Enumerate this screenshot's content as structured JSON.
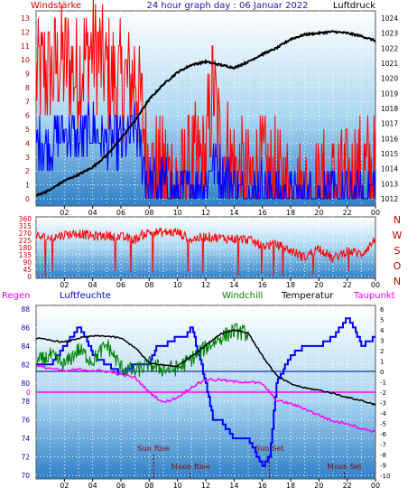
{
  "header": {
    "left_label": "Windstärke",
    "title": "24 hour graph day : 06 Januar 2022",
    "right_label": "Luftdruck"
  },
  "panel3_labels": {
    "regen": "Regen",
    "luftfeuchte": "Luftfeuchte",
    "windchill": "Windchill",
    "temperatur": "Temperatur",
    "taupunkt": "Taupunkt"
  },
  "events": {
    "sun_rise": "Sun Rise",
    "sun_set": "Sun Set",
    "moon_rise": "Moon Rise",
    "moon_set": "Moon Set"
  },
  "colors": {
    "wind_gust": "#ff0000",
    "wind_avg": "#0000ff",
    "pressure": "#000000",
    "wind_dir": "#ff0000",
    "humidity": "#0000ff",
    "temperature": "#000000",
    "windchill": "#008000",
    "dewpoint": "#ff00ff",
    "rain": "#ff00ff",
    "axis_left": "#cc0000",
    "axis_blue": "#0000aa"
  },
  "chart_data": [
    {
      "id": "wind-pressure",
      "type": "line",
      "x_ticks": [
        "02",
        "04",
        "06",
        "08",
        "10",
        "12",
        "14",
        "16",
        "18",
        "20",
        "22",
        "00"
      ],
      "y_left": {
        "label": "Windstärke",
        "ticks": [
          0,
          1,
          2,
          3,
          4,
          5,
          6,
          7,
          8,
          9,
          10,
          11,
          12,
          13
        ],
        "range": [
          0,
          13
        ]
      },
      "y_right": {
        "label": "Luftdruck",
        "ticks": [
          1012,
          1013,
          1014,
          1015,
          1016,
          1017,
          1018,
          1019,
          1020,
          1021,
          1022,
          1023,
          1024
        ],
        "range": [
          1011.5,
          1024.5
        ]
      },
      "series": [
        {
          "key": "gust",
          "hours": [
            1,
            2,
            3,
            4,
            5,
            6,
            7,
            7.5,
            8,
            9,
            10,
            11,
            12,
            12.5,
            13,
            14,
            15,
            16,
            17,
            18,
            19,
            20,
            21,
            22,
            23,
            24
          ],
          "values": [
            9,
            10,
            9,
            11,
            9,
            8,
            9,
            6,
            2,
            2,
            1,
            2,
            3,
            8,
            4,
            2,
            1,
            2,
            1,
            0,
            0,
            0,
            1,
            1,
            2,
            2
          ]
        },
        {
          "key": "avg",
          "hours": [
            1,
            2,
            3,
            4,
            5,
            6,
            7,
            7.5,
            8,
            9,
            10,
            11,
            12,
            12.5,
            13,
            14,
            15,
            16,
            17,
            18,
            19,
            20,
            21,
            22,
            23,
            24
          ],
          "values": [
            4,
            5,
            4,
            5,
            4,
            4,
            5,
            3,
            1,
            1,
            0,
            1,
            1,
            3,
            2,
            1,
            0,
            1,
            0,
            0,
            0,
            0,
            0,
            0,
            0,
            1
          ]
        },
        {
          "key": "pressure",
          "hours": [
            0,
            1,
            2,
            3,
            4,
            5,
            6,
            7,
            8,
            9,
            10,
            11,
            12,
            13,
            14,
            15,
            16,
            17,
            18,
            19,
            20,
            21,
            22,
            23,
            24
          ],
          "values": [
            1012.2,
            1012.6,
            1013.2,
            1013.6,
            1014.1,
            1014.9,
            1016.0,
            1017.2,
            1018.6,
            1019.6,
            1020.4,
            1020.9,
            1021.1,
            1020.9,
            1020.7,
            1021.1,
            1021.6,
            1022.0,
            1022.6,
            1022.9,
            1023.0,
            1023.1,
            1023.0,
            1022.8,
            1022.5
          ]
        }
      ]
    },
    {
      "id": "wind-direction",
      "type": "line",
      "x_ticks": [
        "02",
        "04",
        "06",
        "08",
        "10",
        "12",
        "14",
        "16",
        "18",
        "20",
        "22",
        "00"
      ],
      "y_left": {
        "ticks": [
          0,
          45,
          90,
          135,
          180,
          225,
          270,
          315,
          360
        ],
        "range": [
          0,
          360
        ]
      },
      "y_right": {
        "labels": [
          "N",
          "W",
          "S",
          "O",
          "N"
        ]
      },
      "series": [
        {
          "key": "direction",
          "hours": [
            0,
            1,
            2,
            3,
            4,
            5,
            6,
            7,
            7.5,
            8,
            9,
            10,
            11,
            12,
            13,
            14,
            15,
            16,
            17,
            18,
            19,
            20,
            21,
            22,
            23,
            24
          ],
          "values": [
            250,
            240,
            260,
            270,
            250,
            255,
            245,
            230,
            260,
            275,
            275,
            275,
            230,
            250,
            240,
            235,
            230,
            190,
            200,
            160,
            120,
            180,
            110,
            160,
            140,
            230
          ]
        }
      ]
    },
    {
      "id": "temp-humidity",
      "type": "line",
      "x_ticks": [
        "02",
        "04",
        "06",
        "08",
        "10",
        "12",
        "14",
        "16",
        "18",
        "20",
        "22",
        "00"
      ],
      "y_left": {
        "label": "Luftfeuchte",
        "ticks": [
          70,
          72,
          74,
          76,
          78,
          80,
          82,
          84,
          86,
          88
        ],
        "range": [
          70,
          88
        ]
      },
      "y_right": {
        "label": "Temperatur",
        "ticks": [
          -10,
          -9,
          -8,
          -7,
          -6,
          -5,
          -4,
          -3,
          -2,
          -1,
          0,
          1,
          2,
          3,
          4,
          5,
          6
        ],
        "range": [
          -10,
          6
        ]
      },
      "rain_zero_label": "0",
      "series": [
        {
          "key": "humidity",
          "hours": [
            0,
            1,
            2,
            3,
            3.5,
            4,
            5,
            6,
            7,
            8,
            8.5,
            9,
            10,
            10.5,
            11,
            12,
            12.5,
            13,
            14,
            15,
            16,
            16.5,
            17,
            18,
            19,
            20,
            21,
            22,
            22.5,
            23,
            24
          ],
          "values": [
            82,
            82,
            84,
            86,
            85,
            83,
            82,
            81,
            82,
            82,
            84,
            84,
            85,
            85,
            86,
            80,
            76,
            76,
            74,
            74,
            71,
            72,
            80,
            83,
            84,
            84,
            85,
            87,
            86,
            84,
            85
          ]
        },
        {
          "key": "temperature",
          "hours": [
            0,
            1,
            2,
            3,
            4,
            5,
            6,
            7,
            8,
            9,
            10,
            11,
            12,
            13,
            14,
            15,
            16,
            17,
            18,
            19,
            20,
            21,
            22,
            23,
            24
          ],
          "values": [
            3.2,
            3.0,
            2.8,
            3.2,
            3.4,
            3.4,
            3.2,
            2.3,
            0.8,
            0.6,
            0.5,
            1.5,
            2.5,
            3.6,
            4.0,
            3.7,
            1.5,
            -0.4,
            -1.2,
            -1.6,
            -1.8,
            -2.1,
            -2.5,
            -2.8,
            -3.2
          ]
        },
        {
          "key": "windchill",
          "hours": [
            0,
            1,
            2,
            3,
            4,
            5,
            6,
            7,
            8,
            9,
            10,
            11,
            12,
            13,
            14,
            15
          ],
          "values": [
            0.8,
            1.5,
            0.6,
            2.1,
            1.0,
            2.6,
            0.4,
            0.0,
            0.7,
            0.2,
            0.3,
            1.2,
            2.3,
            3.2,
            3.9,
            3.6
          ]
        },
        {
          "key": "dewpoint",
          "hours": [
            0,
            1,
            2,
            3,
            4,
            5,
            6,
            7,
            8,
            9,
            10,
            11,
            12,
            13,
            14,
            15,
            16,
            17,
            18,
            19,
            20,
            21,
            22,
            23,
            24
          ],
          "values": [
            0.5,
            0.3,
            0.0,
            0.2,
            0.1,
            0.0,
            -0.3,
            -0.6,
            -2.0,
            -3.0,
            -2.5,
            -1.5,
            -0.8,
            -0.8,
            -1.0,
            -1.0,
            -1.2,
            -2.8,
            -3.1,
            -3.6,
            -4.2,
            -4.8,
            -5.0,
            -5.5,
            -5.8
          ]
        }
      ]
    }
  ]
}
